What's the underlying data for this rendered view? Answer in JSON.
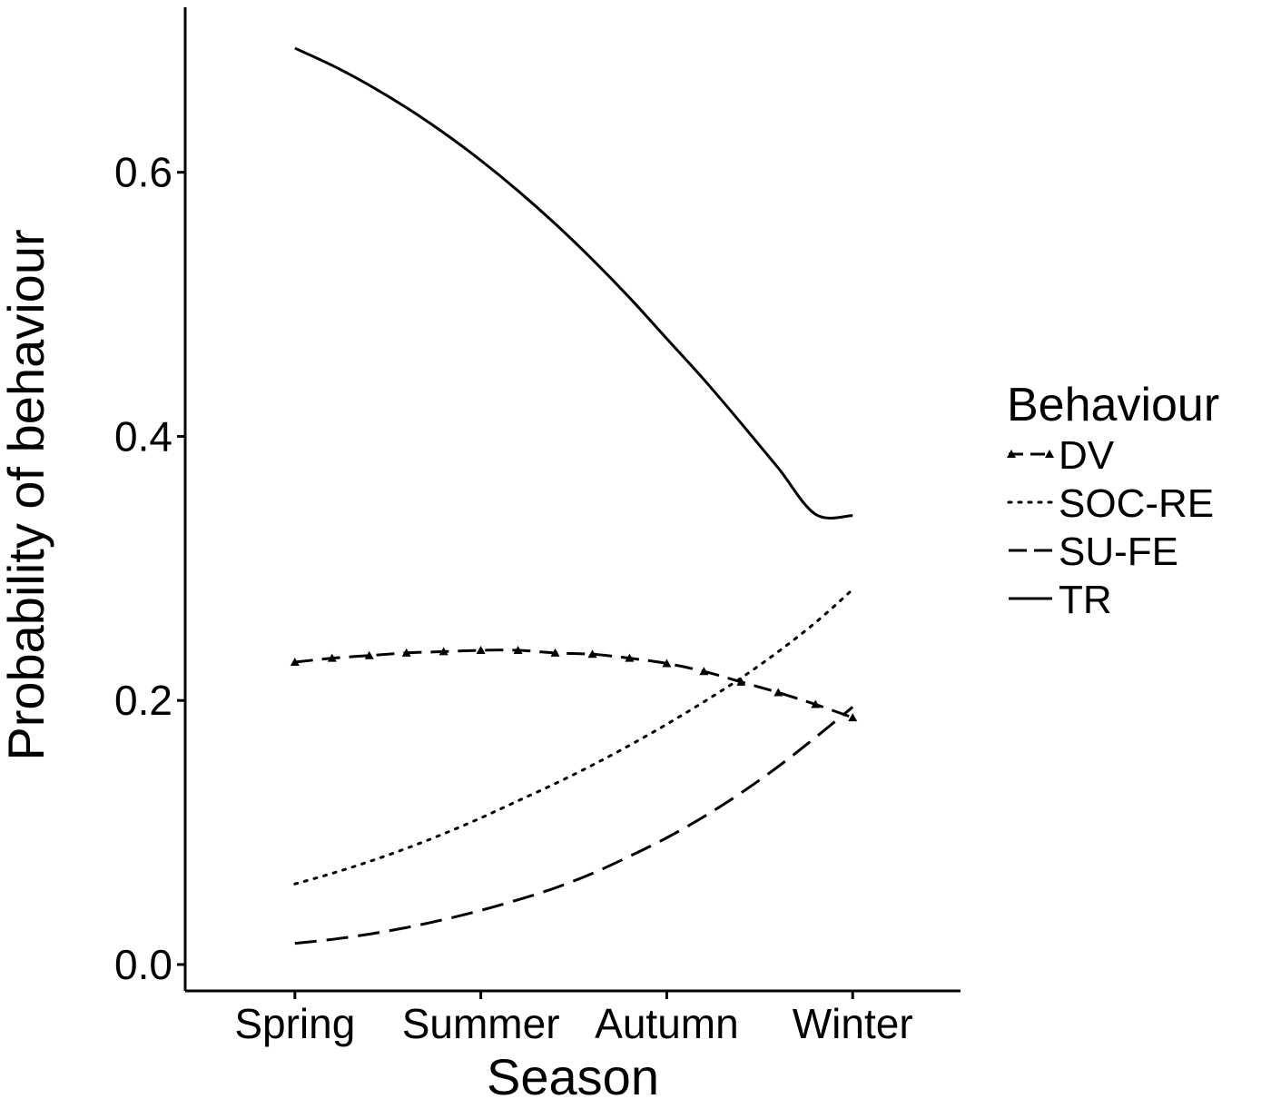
{
  "chart_data": {
    "type": "line",
    "xlabel": "Season",
    "ylabel": "Probability of behaviour",
    "categories": [
      "Spring",
      "Summer",
      "Autumn",
      "Winter"
    ],
    "x": [
      1,
      1.2,
      1.4,
      1.6,
      1.8,
      2,
      2.2,
      2.4,
      2.6,
      2.8,
      3,
      3.2,
      3.4,
      3.6,
      3.8,
      4
    ],
    "xlim": [
      0.41,
      4.58
    ],
    "ylim": [
      -0.02,
      0.725
    ],
    "yticks": [
      0.0,
      0.2,
      0.4,
      0.6
    ],
    "ytick_labels": [
      "0.0",
      "0.2",
      "0.4",
      "0.6"
    ],
    "grid": false,
    "legend": {
      "title": "Behaviour",
      "position": "right"
    },
    "series": [
      {
        "name": "DV",
        "style": "dashed-triangles",
        "values": [
          0.229,
          0.232,
          0.234,
          0.236,
          0.237,
          0.238,
          0.238,
          0.236,
          0.235,
          0.232,
          0.228,
          0.222,
          0.214,
          0.206,
          0.197,
          0.187
        ]
      },
      {
        "name": "SOC-RE",
        "style": "dotted",
        "values": [
          0.061,
          0.069,
          0.078,
          0.088,
          0.099,
          0.111,
          0.124,
          0.137,
          0.151,
          0.166,
          0.182,
          0.199,
          0.217,
          0.237,
          0.259,
          0.284
        ]
      },
      {
        "name": "SU-FE",
        "style": "dashed",
        "values": [
          0.016,
          0.019,
          0.023,
          0.028,
          0.034,
          0.041,
          0.049,
          0.058,
          0.069,
          0.082,
          0.096,
          0.112,
          0.13,
          0.15,
          0.172,
          0.195
        ]
      },
      {
        "name": "TR",
        "style": "solid",
        "values": [
          0.694,
          0.681,
          0.666,
          0.649,
          0.63,
          0.609,
          0.586,
          0.561,
          0.534,
          0.505,
          0.474,
          0.443,
          0.41,
          0.376,
          0.341,
          0.34
        ]
      }
    ]
  }
}
